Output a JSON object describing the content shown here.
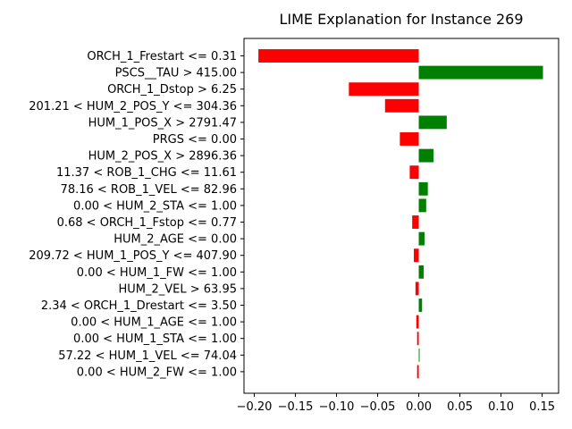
{
  "chart_data": {
    "type": "bar",
    "orientation": "horizontal",
    "title": "LIME Explanation for Instance 269",
    "xlabel": "",
    "ylabel": "",
    "xlim": [
      -0.2125,
      0.17
    ],
    "xticks": [
      -0.2,
      -0.15,
      -0.1,
      -0.05,
      0.0,
      0.05,
      0.1,
      0.15
    ],
    "xtick_labels": [
      "−0.20",
      "−0.15",
      "−0.10",
      "−0.05",
      "0.00",
      "0.05",
      "0.10",
      "0.15"
    ],
    "grid": false,
    "colors": {
      "positive": "#008000",
      "negative": "#ff0000"
    },
    "categories": [
      "ORCH_1_Frestart <= 0.31",
      "PSCS__TAU > 415.00",
      "ORCH_1_Dstop > 6.25",
      "201.21 < HUM_2_POS_Y <= 304.36",
      "HUM_1_POS_X > 2791.47",
      "PRGS <= 0.00",
      "HUM_2_POS_X > 2896.36",
      "11.37 < ROB_1_CHG <= 11.61",
      "78.16 < ROB_1_VEL <= 82.96",
      "0.00 < HUM_2_STA <= 1.00",
      "0.68 < ORCH_1_Fstop <= 0.77",
      "HUM_2_AGE <= 0.00",
      "209.72 < HUM_1_POS_Y <= 407.90",
      "0.00 < HUM_1_FW <= 1.00",
      "HUM_2_VEL > 63.95",
      "2.34 < ORCH_1_Drestart <= 3.50",
      "0.00 < HUM_1_AGE <= 1.00",
      "0.00 < HUM_1_STA <= 1.00",
      "57.22 < HUM_1_VEL <= 74.04",
      "0.00 < HUM_2_FW <= 1.00"
    ],
    "values": [
      -0.195,
      0.151,
      -0.085,
      -0.041,
      0.034,
      -0.023,
      0.018,
      -0.011,
      0.011,
      0.009,
      -0.008,
      0.007,
      -0.006,
      0.006,
      -0.004,
      0.004,
      -0.003,
      -0.002,
      0.001,
      -0.002
    ]
  }
}
